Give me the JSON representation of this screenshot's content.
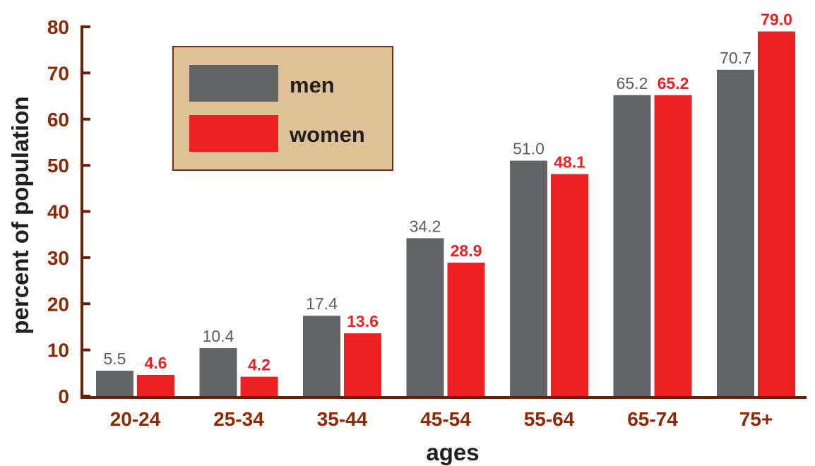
{
  "chart_data": {
    "type": "bar",
    "title": "",
    "xlabel": "ages",
    "ylabel": "percent of population",
    "categories": [
      "20-24",
      "25-34",
      "35-44",
      "45-54",
      "55-64",
      "65-74",
      "75+"
    ],
    "ylim": [
      0,
      80
    ],
    "yticks": [
      "0",
      "10",
      "20",
      "30",
      "40",
      "50",
      "60",
      "70",
      "80"
    ],
    "grid": false,
    "legend": "top-left",
    "series": [
      {
        "name": "men",
        "color": "#636466",
        "values": [
          5.5,
          10.4,
          17.4,
          34.2,
          51.0,
          65.2,
          70.7
        ],
        "labels": [
          "5.5",
          "10.4",
          "17.4",
          "34.2",
          "51.0",
          "65.2",
          "70.7"
        ]
      },
      {
        "name": "women",
        "color": "#ed2024",
        "values": [
          4.6,
          4.2,
          13.6,
          28.9,
          48.1,
          65.2,
          79.0
        ],
        "labels": [
          "4.6",
          "4.2",
          "13.6",
          "28.9",
          "48.1",
          "65.2",
          "79.0"
        ]
      }
    ],
    "colors": {
      "axis": "#6b1f07",
      "tick_text": "#8a2a06",
      "legend_bg": "#dcc295",
      "legend_border": "#7a2a10"
    }
  }
}
